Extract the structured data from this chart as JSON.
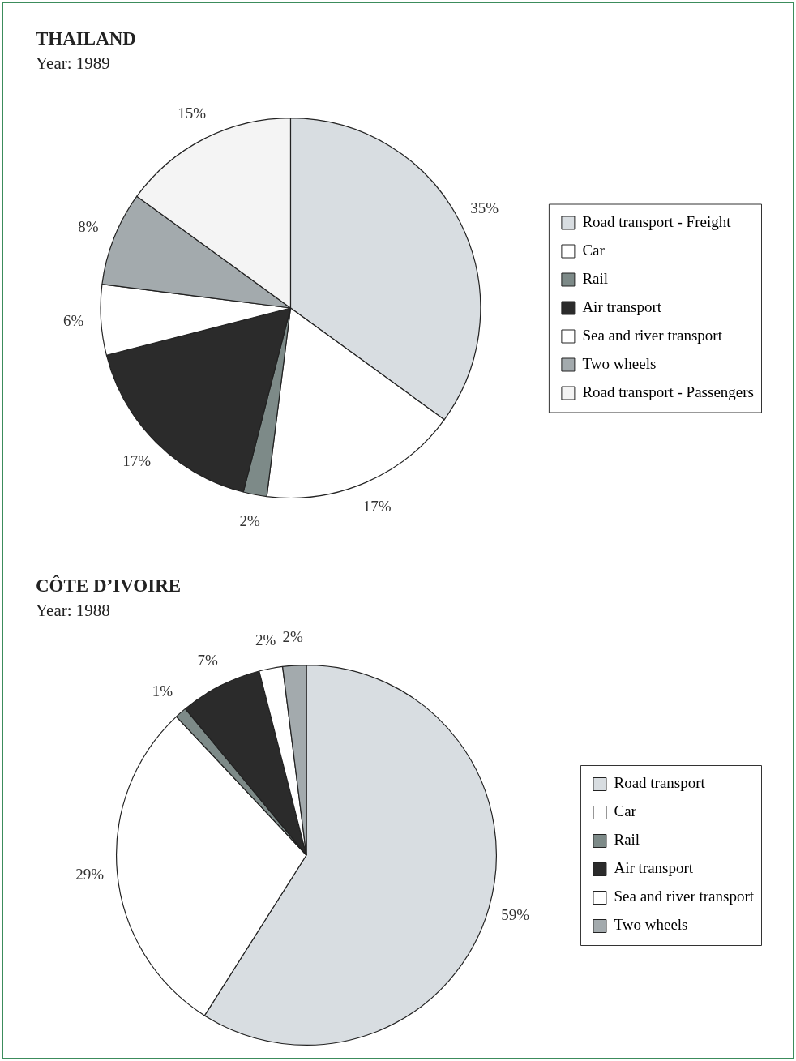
{
  "chart_data": [
    {
      "type": "pie",
      "title": "THAILAND",
      "subtitle": "Year: 1989",
      "categories": [
        "Road transport - Freight",
        "Car",
        "Rail",
        "Air transport",
        "Sea and river transport",
        "Two wheels",
        "Road transport - Passengers"
      ],
      "values": [
        35,
        17,
        2,
        17,
        6,
        8,
        15
      ],
      "value_labels": [
        "35%",
        "17%",
        "2%",
        "17%",
        "6%",
        "8%",
        "15%"
      ],
      "colors": [
        "#d8dde1",
        "#ffffff",
        "#7d8a88",
        "#2b2b2b",
        "#ffffff",
        "#a3aaad",
        "#f4f4f4"
      ],
      "legend": "right"
    },
    {
      "type": "pie",
      "title": "CÔTE D’IVOIRE",
      "subtitle": "Year: 1988",
      "categories": [
        "Road transport",
        "Car",
        "Rail",
        "Air transport",
        "Sea and river transport",
        "Two wheels"
      ],
      "values": [
        59,
        29,
        1,
        7,
        2,
        2
      ],
      "value_labels": [
        "59%",
        "29%",
        "1%",
        "7%",
        "2%",
        "2%"
      ],
      "colors": [
        "#d8dde1",
        "#ffffff",
        "#7d8a88",
        "#2b2b2b",
        "#ffffff",
        "#a3aaad"
      ],
      "legend": "right"
    }
  ]
}
